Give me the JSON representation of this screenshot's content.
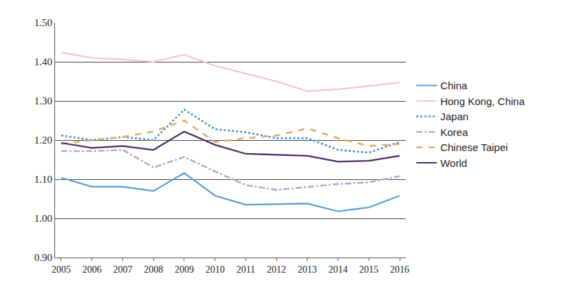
{
  "chart_data": {
    "type": "line",
    "categories": [
      "2005",
      "2006",
      "2007",
      "2008",
      "2009",
      "2010",
      "2011",
      "2012",
      "2013",
      "2014",
      "2015",
      "2016"
    ],
    "series": [
      {
        "name": "China",
        "color": "#5b9bd5",
        "line_style": "solid",
        "values": [
          1.104,
          1.081,
          1.081,
          1.07,
          1.116,
          1.058,
          1.035,
          1.037,
          1.038,
          1.018,
          1.028,
          1.058
        ]
      },
      {
        "name": "Hong Kong, China",
        "color": "#f2c4cf",
        "line_style": "solid",
        "values": [
          1.424,
          1.41,
          1.406,
          1.4,
          1.418,
          1.39,
          1.37,
          1.35,
          1.325,
          1.33,
          1.338,
          1.347
        ]
      },
      {
        "name": "Japan",
        "color": "#4a8fc7",
        "line_style": "dot",
        "values": [
          1.212,
          1.2,
          1.208,
          1.2,
          1.278,
          1.228,
          1.22,
          1.205,
          1.205,
          1.175,
          1.168,
          1.195
        ]
      },
      {
        "name": "Korea",
        "color": "#b3a9d4",
        "line_style": "dashdot",
        "values": [
          1.172,
          1.172,
          1.175,
          1.13,
          1.157,
          1.12,
          1.085,
          1.073,
          1.08,
          1.088,
          1.092,
          1.108
        ]
      },
      {
        "name": "Chinese Taipei",
        "color": "#e8a862",
        "line_style": "dash",
        "values": [
          1.19,
          1.2,
          1.208,
          1.222,
          1.25,
          1.195,
          1.205,
          1.212,
          1.23,
          1.205,
          1.185,
          1.19
        ]
      },
      {
        "name": "World",
        "color": "#4b2a5e",
        "line_style": "solid",
        "values": [
          1.193,
          1.18,
          1.185,
          1.175,
          1.222,
          1.188,
          1.165,
          1.162,
          1.16,
          1.145,
          1.147,
          1.16
        ]
      }
    ],
    "ylim": [
      0.9,
      1.5
    ],
    "yticks": [
      {
        "value": 0.9,
        "label": "0.90"
      },
      {
        "value": 1.0,
        "label": "1.00"
      },
      {
        "value": 1.1,
        "label": "1.10"
      },
      {
        "value": 1.2,
        "label": "1.20"
      },
      {
        "value": 1.3,
        "label": "1.30"
      },
      {
        "value": 1.4,
        "label": "1.40"
      },
      {
        "value": 1.5,
        "label": "1.50"
      }
    ],
    "grid": true,
    "legend": "right"
  }
}
